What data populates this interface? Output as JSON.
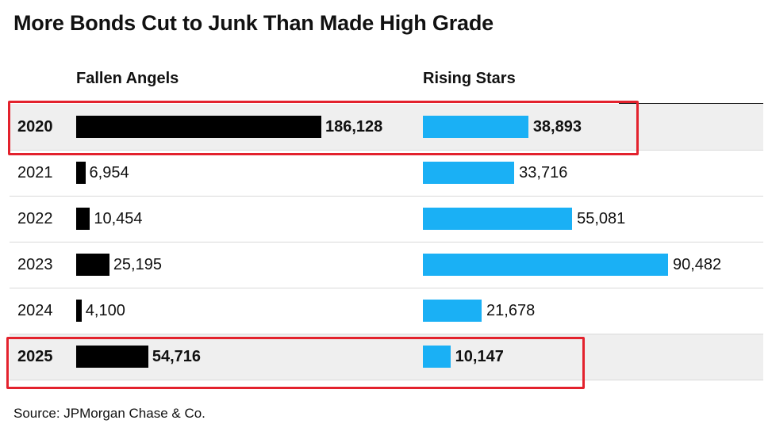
{
  "chart_data": {
    "type": "bar",
    "title": "More Bonds Cut to Junk Than Made High Grade",
    "source": "Source: JPMorgan Chase & Co.",
    "categories": [
      "2020",
      "2021",
      "2022",
      "2023",
      "2024",
      "2025"
    ],
    "series": [
      {
        "name": "Fallen Angels",
        "color": "#000000",
        "values": [
          186128,
          6954,
          10454,
          25195,
          4100,
          54716
        ],
        "labels": [
          "186,128",
          "6,954",
          "10,454",
          "25,195",
          "4,100",
          "54,716"
        ]
      },
      {
        "name": "Rising Stars",
        "color": "#1ab0f5",
        "values": [
          38893,
          33716,
          55081,
          90482,
          21678,
          10147
        ],
        "labels": [
          "38,893",
          "33,716",
          "55,081",
          "90,482",
          "21,678",
          "10,147"
        ]
      }
    ],
    "highlighted_categories": [
      "2020",
      "2025"
    ],
    "highlight_color": "#e3222d",
    "grid": false,
    "legend": "column headers"
  }
}
